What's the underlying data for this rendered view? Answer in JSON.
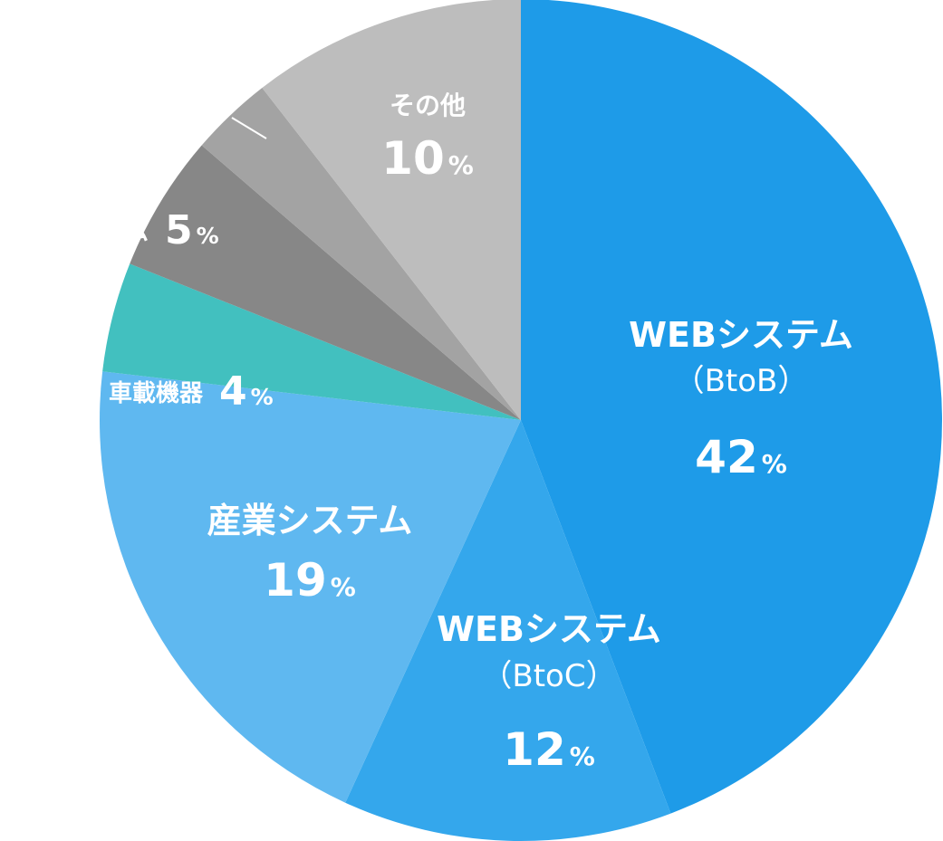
{
  "chart_data": {
    "type": "pie",
    "start": "12 o'clock",
    "direction": "clockwise",
    "slices": [
      {
        "label": "WEBシステム",
        "sublabel": "（BtoB）",
        "value": 42,
        "unit": "%",
        "color": "#1e9be8"
      },
      {
        "label": "WEBシステム",
        "sublabel": "（BtoC）",
        "value": 12,
        "unit": "%",
        "color": "#34a7ec"
      },
      {
        "label": "産業システム",
        "sublabel": "",
        "value": 19,
        "unit": "%",
        "color": "#5fb8f0"
      },
      {
        "label": "車載機器",
        "sublabel": "",
        "value": 4,
        "unit": "%",
        "color": "#42c0bf"
      },
      {
        "label": "ム",
        "sublabel": "",
        "value": 5,
        "unit": "%",
        "color": "#878787"
      },
      {
        "label": "",
        "sublabel": "",
        "value": 3,
        "unit": "",
        "color": "#a3a3a3"
      },
      {
        "label": "その他",
        "sublabel": "",
        "value": 10,
        "unit": "%",
        "color": "#bdbdbd"
      }
    ]
  }
}
